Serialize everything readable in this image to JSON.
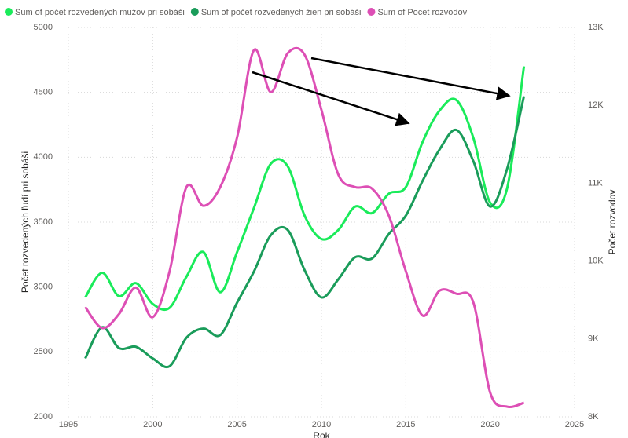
{
  "chart_data": {
    "type": "line",
    "x": [
      1996,
      1997,
      1998,
      1999,
      2000,
      2001,
      2002,
      2003,
      2004,
      2005,
      2006,
      2007,
      2008,
      2009,
      2010,
      2011,
      2012,
      2013,
      2014,
      2015,
      2016,
      2017,
      2018,
      2019,
      2020,
      2021,
      2022
    ],
    "series": [
      {
        "name": "Sum of počet rozvedených mužov pri sobáši",
        "color": "#1aeb5a",
        "values": [
          2920,
          3110,
          2930,
          3030,
          2870,
          2840,
          3080,
          3270,
          2960,
          3270,
          3610,
          3950,
          3930,
          3550,
          3370,
          3440,
          3620,
          3570,
          3720,
          3770,
          4120,
          4360,
          4440,
          4150,
          3650,
          3760,
          4700
        ]
      },
      {
        "name": "Sum of počet rozvedených žien pri sobáši",
        "color": "#1a9c5a",
        "values": [
          2450,
          2690,
          2530,
          2540,
          2450,
          2390,
          2610,
          2680,
          2630,
          2880,
          3120,
          3400,
          3440,
          3130,
          2920,
          3060,
          3230,
          3220,
          3410,
          3550,
          3820,
          4060,
          4210,
          3970,
          3620,
          3910,
          4470
        ]
      },
      {
        "name": "Sum of Pocet rozvodov",
        "color": "#dd4fb5",
        "axis": "y2",
        "values": [
          9410,
          9140,
          9320,
          9660,
          9280,
          9870,
          10950,
          10710,
          10950,
          11590,
          12710,
          12170,
          12670,
          12650,
          11940,
          11110,
          10950,
          10930,
          10580,
          9870,
          9300,
          9620,
          9580,
          9470,
          8310,
          8130,
          8180
        ]
      }
    ],
    "xlabel": "Rok",
    "ylabel": "Počet rozvedených ľudí pri sobáši",
    "y2label": "Počet rozvodov",
    "xlim": [
      1995,
      2025
    ],
    "xticks": [
      1995,
      2000,
      2005,
      2010,
      2015,
      2020,
      2025
    ],
    "ylim": [
      2000,
      5000
    ],
    "yticks": [
      2000,
      2500,
      3000,
      3500,
      4000,
      4500,
      5000
    ],
    "y2lim": [
      8000,
      13000
    ],
    "y2ticks": [
      {
        "value": 8000,
        "label": "8K"
      },
      {
        "value": 9000,
        "label": "9K"
      },
      {
        "value": 10000,
        "label": "10K"
      },
      {
        "value": 11000,
        "label": "11K"
      },
      {
        "value": 12000,
        "label": "12K"
      },
      {
        "value": 13000,
        "label": "13K"
      }
    ],
    "grid": true,
    "legend": "top-left"
  }
}
